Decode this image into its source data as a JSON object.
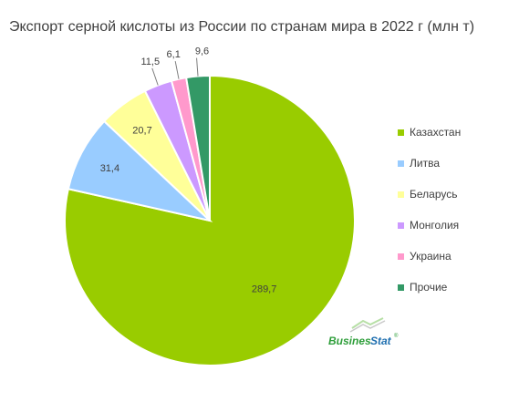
{
  "chart_data": {
    "type": "pie",
    "title": "Экспорт серной кислоты из России по странам мира в 2022 г (млн т)",
    "categories": [
      "Казахстан",
      "Литва",
      "Беларусь",
      "Монголия",
      "Украина",
      "Прочие"
    ],
    "values": [
      289.7,
      31.4,
      20.7,
      11.5,
      6.1,
      9.6
    ],
    "data_labels": [
      "289,7",
      "31,4",
      "20,7",
      "11,5",
      "6,1",
      "9,6"
    ],
    "colors": [
      "#99cc00",
      "#99ccff",
      "#ffff99",
      "#cc99ff",
      "#ff99cc",
      "#339966"
    ],
    "legend_position": "right"
  },
  "brand": {
    "part1": "Busines",
    "part2": "Stat",
    "mark": "®",
    "icon": "chart-arrow-logo"
  }
}
